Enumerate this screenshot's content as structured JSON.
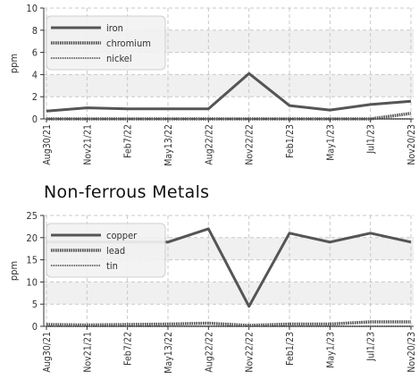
{
  "colors": {
    "line": "#555555",
    "grid": "#c8c8c8",
    "band": "#f0f0f0",
    "axis": "#333333",
    "text": "#333333",
    "legend_bg": "#f2f2f2",
    "legend_border": "#cccccc"
  },
  "section_title": "Non-ferrous Metals",
  "chart_data": [
    {
      "type": "line",
      "title": "",
      "xlabel": "",
      "ylabel": "ppm",
      "ylim": [
        0,
        10
      ],
      "yticks": [
        0,
        2,
        4,
        6,
        8,
        10
      ],
      "grid": true,
      "legend_position": "top-left",
      "categories": [
        "Aug30/21",
        "Nov21/21",
        "Feb7/22",
        "May13/22",
        "Aug22/22",
        "Nov22/22",
        "Feb1/23",
        "May1/23",
        "Jul1/23",
        "Nov20/23"
      ],
      "series": [
        {
          "name": "iron",
          "style": "solid",
          "values": [
            0.7,
            1.0,
            0.9,
            0.9,
            0.9,
            4.1,
            1.2,
            0.8,
            1.3,
            1.6
          ]
        },
        {
          "name": "chromium",
          "style": "dense",
          "values": [
            0,
            0,
            0,
            0,
            0,
            0,
            0,
            0,
            0,
            0.5
          ]
        },
        {
          "name": "nickel",
          "style": "fine",
          "values": [
            0,
            0,
            0,
            0,
            0,
            0,
            0,
            0,
            0,
            0
          ]
        }
      ]
    },
    {
      "type": "line",
      "title": "Non-ferrous Metals",
      "xlabel": "",
      "ylabel": "ppm",
      "ylim": [
        0,
        25
      ],
      "yticks": [
        0,
        5,
        10,
        15,
        20,
        25
      ],
      "grid": true,
      "legend_position": "top-left",
      "categories": [
        "Aug30/21",
        "Nov21/21",
        "Feb7/22",
        "May13/22",
        "Aug22/22",
        "Nov22/22",
        "Feb1/23",
        "May1/23",
        "Jul1/23",
        "Nov20/23"
      ],
      "series": [
        {
          "name": "copper",
          "style": "solid",
          "values": [
            19,
            19,
            19,
            19,
            22,
            4.5,
            21,
            19,
            21,
            19
          ]
        },
        {
          "name": "lead",
          "style": "dense",
          "values": [
            0.4,
            0.3,
            0.4,
            0.5,
            0.7,
            0.2,
            0.5,
            0.5,
            1.0,
            1.0
          ]
        },
        {
          "name": "tin",
          "style": "fine",
          "values": [
            0,
            0,
            0,
            0,
            0,
            0,
            0,
            0,
            0,
            0
          ]
        }
      ]
    }
  ]
}
